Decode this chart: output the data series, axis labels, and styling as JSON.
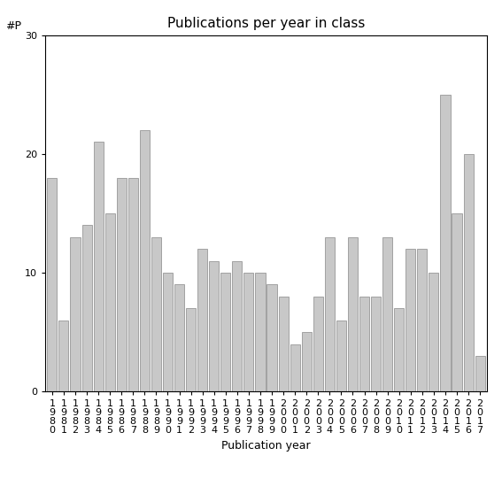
{
  "title": "Publications per year in class",
  "xlabel": "Publication year",
  "ylabel": "#P",
  "years": [
    "1980",
    "1981",
    "1982",
    "1983",
    "1984",
    "1985",
    "1986",
    "1987",
    "1988",
    "1989",
    "1990",
    "1991",
    "1992",
    "1993",
    "1994",
    "1995",
    "1996",
    "1997",
    "1998",
    "1999",
    "2000",
    "2001",
    "2002",
    "2003",
    "2004",
    "2005",
    "2006",
    "2007",
    "2008",
    "2009",
    "2010",
    "2011",
    "2012",
    "2013",
    "2014",
    "2015",
    "2016",
    "2017"
  ],
  "values": [
    18,
    6,
    13,
    14,
    21,
    15,
    18,
    18,
    22,
    13,
    10,
    9,
    7,
    12,
    11,
    10,
    11,
    10,
    10,
    9,
    8,
    4,
    5,
    8,
    13,
    6,
    13,
    8,
    8,
    13,
    7,
    12,
    12,
    10,
    25,
    15,
    20,
    3
  ],
  "bar_color": "#c8c8c8",
  "bar_edgecolor": "#888888",
  "ylim": [
    0,
    30
  ],
  "yticks": [
    0,
    10,
    20,
    30
  ],
  "background_color": "#ffffff",
  "title_fontsize": 11,
  "label_fontsize": 9,
  "tick_fontsize": 8
}
